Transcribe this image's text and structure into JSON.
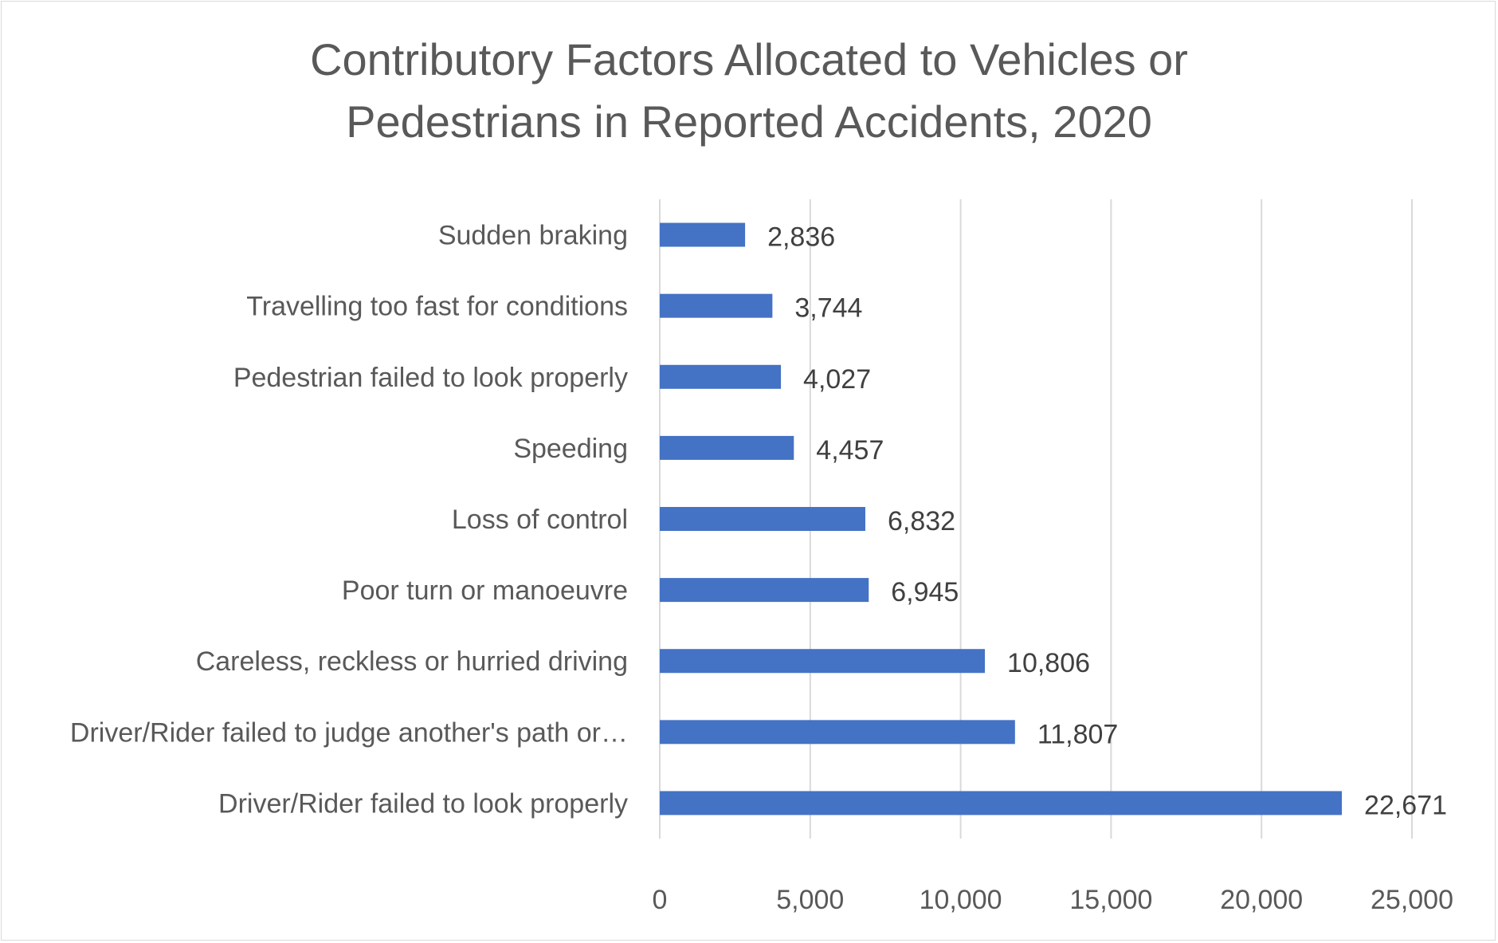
{
  "chart_data": {
    "type": "bar",
    "orientation": "horizontal",
    "title": "Contributory Factors Allocated to Vehicles or Pedestrians in Reported Accidents, 2020",
    "title_lines": [
      "Contributory Factors Allocated to Vehicles or",
      "Pedestrians in Reported Accidents, 2020"
    ],
    "categories": [
      "Sudden braking",
      "Travelling too fast for conditions",
      "Pedestrian failed to look properly",
      "Speeding",
      "Loss of control",
      "Poor turn or manoeuvre",
      "Careless, reckless or hurried driving",
      "Driver/Rider failed to judge another's path or…",
      "Driver/Rider failed to look properly"
    ],
    "values": [
      2836,
      3744,
      4027,
      4457,
      6832,
      6945,
      10806,
      11807,
      22671
    ],
    "data_labels": [
      "2,836",
      "3,744",
      "4,027",
      "4,457",
      "6,832",
      "6,945",
      "10,806",
      "11,807",
      "22,671"
    ],
    "xlim": [
      0,
      25000
    ],
    "xticks": [
      0,
      5000,
      10000,
      15000,
      20000,
      25000
    ],
    "xtick_labels": [
      "0",
      "5,000",
      "10,000",
      "15,000",
      "20,000",
      "25,000"
    ],
    "xlabel": "",
    "ylabel": "",
    "grid": "vertical",
    "legend": "none",
    "bar_color": "#4472c4",
    "grid_color": "#d9d9d9"
  }
}
